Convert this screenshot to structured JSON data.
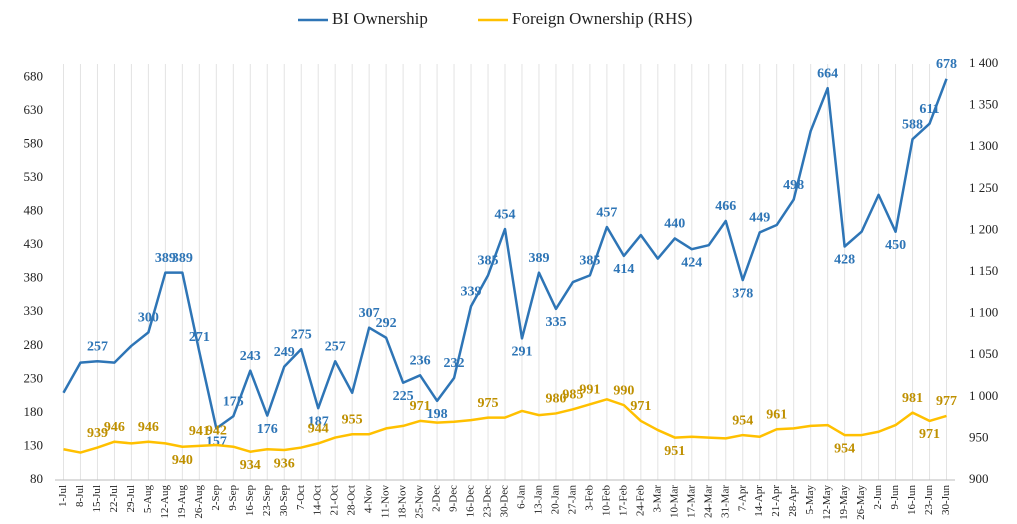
{
  "chart_data": {
    "type": "line",
    "categories": [
      "1-Jul",
      "8-Jul",
      "15-Jul",
      "22-Jul",
      "29-Jul",
      "5-Aug",
      "12-Aug",
      "19-Aug",
      "26-Aug",
      "2-Sep",
      "9-Sep",
      "16-Sep",
      "23-Sep",
      "30-Sep",
      "7-Oct",
      "14-Oct",
      "21-Oct",
      "28-Oct",
      "4-Nov",
      "11-Nov",
      "18-Nov",
      "25-Nov",
      "2-Dec",
      "9-Dec",
      "16-Dec",
      "23-Dec",
      "30-Dec",
      "6-Jan",
      "13-Jan",
      "20-Jan",
      "27-Jan",
      "3-Feb",
      "10-Feb",
      "17-Feb",
      "24-Feb",
      "3-Mar",
      "10-Mar",
      "17-Mar",
      "24-Mar",
      "31-Mar",
      "7-Apr",
      "14-Apr",
      "21-Apr",
      "28-Apr",
      "5-May",
      "12-May",
      "19-May",
      "26-May",
      "2-Jun",
      "9-Jun",
      "16-Jun",
      "23-Jun",
      "30-Jun"
    ],
    "series": [
      {
        "name": "BI Ownership",
        "color": "#2e75b6",
        "label_color": "#2e75b6",
        "values": [
          210,
          255,
          257,
          255,
          280,
          300,
          389,
          389,
          271,
          157,
          175,
          243,
          176,
          249,
          275,
          187,
          257,
          210,
          307,
          292,
          225,
          236,
          198,
          232,
          339,
          385,
          454,
          291,
          389,
          335,
          375,
          385,
          457,
          414,
          445,
          410,
          440,
          424,
          430,
          466,
          378,
          449,
          460,
          498,
          600,
          664,
          428,
          450,
          505,
          450,
          588,
          611,
          678
        ],
        "value_labels": [
          null,
          null,
          "257",
          null,
          null,
          "300",
          "389",
          "389",
          "271",
          "157",
          "175",
          "243",
          "176",
          "249",
          "275",
          "187",
          "257",
          null,
          "307",
          "292",
          "225",
          "236",
          "198",
          "232",
          "339",
          "385",
          "454",
          "291",
          "389",
          "335",
          null,
          "385",
          "457",
          "414",
          null,
          null,
          "440",
          "424",
          null,
          "466",
          "378",
          "449",
          null,
          "498",
          null,
          "664",
          "428",
          null,
          null,
          "450",
          "588",
          "611",
          "678"
        ]
      },
      {
        "name": "Foreign Ownership (RHS)",
        "color": "#ffc000",
        "label_color": "#bf9000",
        "axis": "y2",
        "values": [
          937,
          933,
          939,
          946,
          944,
          946,
          944,
          940,
          941,
          942,
          940,
          934,
          937,
          936,
          939,
          944,
          951,
          955,
          955,
          962,
          965,
          971,
          969,
          970,
          972,
          975,
          975,
          983,
          978,
          980,
          985,
          991,
          997,
          990,
          971,
          960,
          951,
          952,
          951,
          950,
          954,
          952,
          961,
          962,
          965,
          966,
          954,
          954,
          958,
          966,
          981,
          971,
          977
        ],
        "value_labels": [
          null,
          null,
          "939",
          "946",
          null,
          "946",
          null,
          "940",
          "941",
          "942",
          null,
          "934",
          null,
          "936",
          null,
          "944",
          null,
          "955",
          null,
          null,
          null,
          "971",
          null,
          null,
          null,
          "975",
          null,
          null,
          null,
          "980",
          "985",
          "991",
          null,
          "990",
          "971",
          null,
          "951",
          null,
          null,
          null,
          "954",
          null,
          "961",
          null,
          null,
          null,
          "954",
          null,
          null,
          null,
          "981",
          "971",
          "977"
        ]
      }
    ],
    "ylim": [
      80,
      700
    ],
    "yticks": [
      80,
      130,
      180,
      230,
      280,
      330,
      380,
      430,
      480,
      530,
      580,
      630,
      680
    ],
    "y2lim": [
      900,
      1400
    ],
    "y2ticks": [
      900,
      950,
      {
        "value": 1000,
        "label": "1 000"
      },
      {
        "value": 1050,
        "label": "1 050"
      },
      {
        "value": 1100,
        "label": "1 100"
      },
      {
        "value": 1150,
        "label": "1 150"
      },
      {
        "value": 1200,
        "label": "1 200"
      },
      {
        "value": 1250,
        "label": "1 250"
      },
      {
        "value": 1300,
        "label": "1 300"
      },
      {
        "value": 1350,
        "label": "1 350"
      },
      {
        "value": 1400,
        "label": "1 400"
      }
    ],
    "grid": true
  }
}
